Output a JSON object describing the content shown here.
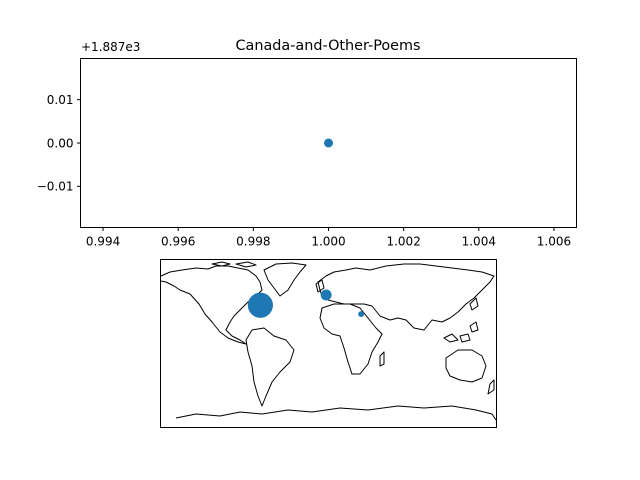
{
  "chart_data": [
    {
      "type": "scatter",
      "title": "Canada-and-Other-Poems",
      "xlabel": "",
      "ylabel": "",
      "offset_label": "+1.887e3",
      "xlim": [
        0.9934,
        1.0066
      ],
      "ylim": [
        -0.0195,
        0.0195
      ],
      "xticks": [
        0.994,
        0.996,
        0.998,
        1.0,
        1.002,
        1.004,
        1.006
      ],
      "xtick_labels": [
        "0.994",
        "0.996",
        "0.998",
        "1.000",
        "1.002",
        "1.004",
        "1.006"
      ],
      "yticks": [
        0.01,
        0.0,
        -0.01
      ],
      "ytick_labels": [
        "0.01",
        "0.00",
        "−0.01"
      ],
      "grid": false,
      "color": "#1f77b4",
      "points": [
        {
          "x": 1.0,
          "y": 0.0
        }
      ]
    },
    {
      "type": "scatter",
      "subtype": "world-map-bubbles",
      "projection": "plate-carree",
      "grid": false,
      "color": "#1f77b4",
      "points": [
        {
          "lon": -73,
          "lat": 41,
          "size": 3.0
        },
        {
          "lon": -2.5,
          "lat": 52,
          "size": 1.3
        },
        {
          "lon": 35,
          "lat": 31.5,
          "size": 0.7
        }
      ]
    }
  ]
}
